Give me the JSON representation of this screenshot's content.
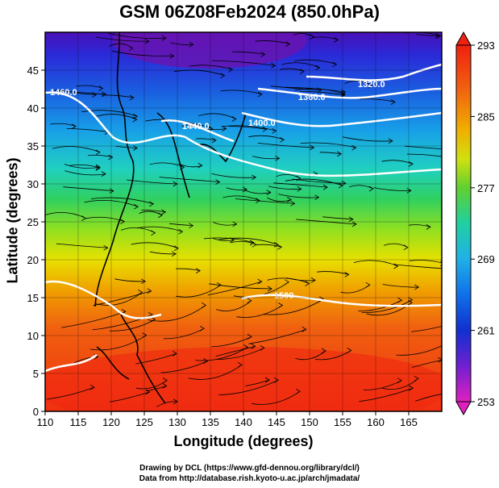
{
  "title": "GSM 06Z08Feb2024 (850.0hPa)",
  "map": {
    "xlabel": "Longitude (degrees)",
    "ylabel": "Latitude  (degrees)",
    "x_ticks": [
      "110",
      "115",
      "120",
      "125",
      "130",
      "135",
      "140",
      "145",
      "150",
      "155",
      "160",
      "165"
    ],
    "y_ticks": [
      "0",
      "5",
      "10",
      "15",
      "20",
      "25",
      "30",
      "35",
      "40",
      "45"
    ],
    "x_range": [
      110,
      170
    ],
    "y_range": [
      0,
      50
    ],
    "contour_labels": [
      "1460.0",
      "1440.0",
      "1400.0",
      "1360.0",
      "1320.0",
      "1500"
    ]
  },
  "colorbar": {
    "ticks": [
      "253",
      "261",
      "269",
      "277",
      "285",
      "293"
    ],
    "range": [
      253,
      293
    ],
    "colors": [
      "#e020c0",
      "#7020d0",
      "#1030d0",
      "#1070e8",
      "#20b0e8",
      "#20d0a0",
      "#30d040",
      "#a0e020",
      "#f0d000",
      "#f08000",
      "#f03010"
    ]
  },
  "credits": {
    "line1": "Drawing by DCL (https://www.gfd-dennou.org/library/dcl/)",
    "line2": "Data from http://database.rish.kyoto-u.ac.jp/arch/jmadata/"
  }
}
